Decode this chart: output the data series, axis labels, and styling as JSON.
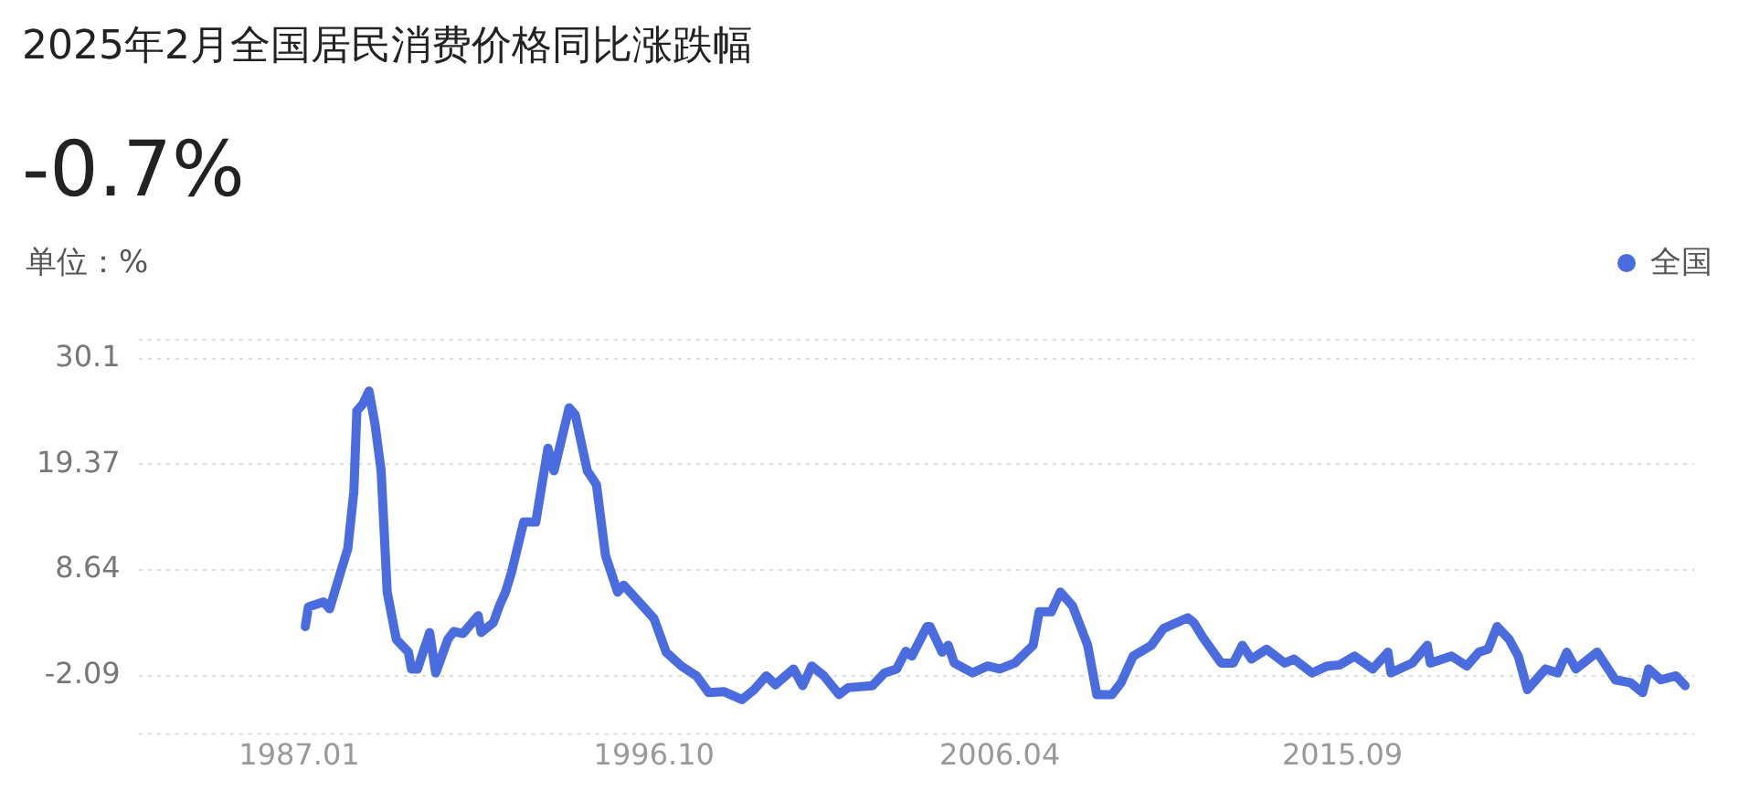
{
  "chart_data": {
    "type": "line",
    "title": "2025年2月全国居民消费价格同比涨跌幅",
    "subtitle": "-0.7%",
    "ylabel": "单位：%",
    "legend": "top right",
    "grid": "y",
    "marker": "none",
    "line_style": "solid",
    "xlim": [
      "1982-08",
      "2025-05"
    ],
    "xticks": [
      {
        "value": "1987-01",
        "label": "1987.01"
      },
      {
        "value": "1996-10",
        "label": "1996.10"
      },
      {
        "value": "2006-04",
        "label": "2006.04"
      },
      {
        "value": "2015-09",
        "label": "2015.09"
      }
    ],
    "ylim": [
      -8,
      32
    ],
    "yticks": [
      -2.09,
      8.64,
      19.37,
      30.1
    ],
    "x": [
      "1987-03",
      "1987-04",
      "1987-09",
      "1987-11",
      "1988-03",
      "1988-05",
      "1988-07",
      "1988-08",
      "1988-10",
      "1988-12",
      "1989-02",
      "1989-04",
      "1989-06",
      "1989-09",
      "1990-01",
      "1990-02",
      "1990-04",
      "1990-08",
      "1990-10",
      "1991-02",
      "1991-04",
      "1991-07",
      "1991-10",
      "1991-12",
      "1992-01",
      "1992-05",
      "1992-07",
      "1992-09",
      "1992-11",
      "1993-03",
      "1993-07",
      "1993-11",
      "1994-01",
      "1994-06",
      "1994-08",
      "1994-12",
      "1995-03",
      "1995-06",
      "1995-10",
      "1995-12",
      "1996-08",
      "1996-10",
      "1997-02",
      "1997-07",
      "1997-12",
      "1998-04",
      "1998-09",
      "1999-03",
      "1999-07",
      "1999-11",
      "2000-02",
      "2000-08",
      "2000-11",
      "2001-02",
      "2001-06",
      "2001-11",
      "2002-02",
      "2002-10",
      "2003-02",
      "2003-06",
      "2003-09",
      "2003-11",
      "2004-04",
      "2004-05",
      "2004-09",
      "2004-11",
      "2005-01",
      "2005-07",
      "2005-12",
      "2006-04",
      "2006-09",
      "2007-03",
      "2007-05",
      "2007-09",
      "2007-12",
      "2008-04",
      "2008-09",
      "2008-12",
      "2009-05",
      "2009-08",
      "2009-12",
      "2010-06",
      "2010-10",
      "2011-06",
      "2011-08",
      "2011-11",
      "2012-05",
      "2012-09",
      "2012-12",
      "2013-03",
      "2013-08",
      "2014-02",
      "2014-05",
      "2014-11",
      "2015-04",
      "2015-08",
      "2016-01",
      "2016-07",
      "2016-12",
      "2017-01",
      "2017-08",
      "2018-01",
      "2018-02",
      "2018-09",
      "2019-02",
      "2019-06",
      "2019-09",
      "2019-12",
      "2020-04",
      "2020-07",
      "2020-10",
      "2021-04",
      "2021-08",
      "2021-11",
      "2022-02",
      "2022-09",
      "2023-03",
      "2023-08",
      "2023-12",
      "2024-02",
      "2024-06",
      "2024-11",
      "2025-02"
    ],
    "series": [
      {
        "name": "全国",
        "color": "#4a6cdf",
        "values": [
          2.9,
          4.9,
          5.4,
          4.7,
          8.8,
          10.8,
          16.6,
          24.8,
          25.5,
          26.8,
          23.4,
          18.7,
          6.4,
          1.6,
          0.3,
          -1.4,
          -1.4,
          2.3,
          -1.8,
          1.6,
          2.4,
          2.2,
          3.3,
          4.0,
          2.3,
          3.3,
          5.0,
          6.4,
          8.4,
          13.5,
          13.5,
          21.0,
          18.7,
          25.1,
          24.4,
          18.7,
          17.3,
          10.1,
          6.4,
          7.1,
          4.4,
          3.7,
          0.3,
          -1.1,
          -2.1,
          -3.8,
          -3.7,
          -4.5,
          -3.5,
          -2.1,
          -3.0,
          -1.4,
          -3.1,
          -1.1,
          -2.1,
          -4.0,
          -3.3,
          -3.1,
          -1.8,
          -1.4,
          0.4,
          -0.1,
          2.9,
          2.9,
          0.3,
          1.0,
          -0.8,
          -1.8,
          -1.1,
          -1.4,
          -0.8,
          1.0,
          4.4,
          4.4,
          6.4,
          5.0,
          1.0,
          -4.0,
          -4.0,
          -2.8,
          -0.1,
          1.0,
          2.7,
          3.8,
          3.3,
          1.8,
          -0.8,
          -0.8,
          1.0,
          -0.4,
          0.6,
          -0.8,
          -0.4,
          -1.8,
          -1.1,
          -1.0,
          -0.1,
          -1.4,
          0.3,
          -1.8,
          -0.8,
          1.0,
          -0.8,
          -0.1,
          -1.1,
          0.3,
          0.6,
          2.9,
          1.6,
          -0.1,
          -3.5,
          -1.4,
          -1.8,
          0.3,
          -1.4,
          0.3,
          -2.5,
          -2.8,
          -3.8,
          -1.4,
          -2.5,
          -2.1,
          -3.1
        ]
      }
    ]
  }
}
